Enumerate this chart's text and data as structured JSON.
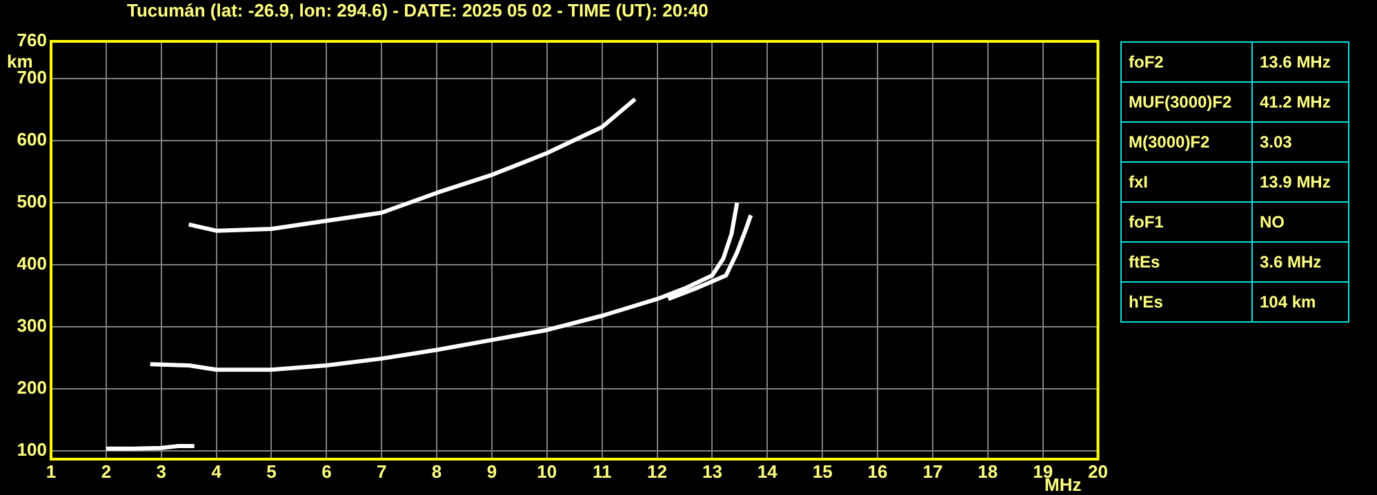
{
  "chart_data": [
    {
      "type": "line",
      "title": "Tucumán (lat: -26.9, lon: 294.6) - DATE: 2025 05 02 - TIME (UT): 20:40",
      "xlabel": "MHz",
      "ylabel": "km",
      "xlim": [
        1,
        20
      ],
      "xticks": [
        1,
        2,
        3,
        4,
        5,
        6,
        7,
        8,
        9,
        10,
        11,
        12,
        13,
        14,
        15,
        16,
        17,
        18,
        19,
        20
      ],
      "ylim": [
        87,
        760
      ],
      "yticks": [
        100,
        200,
        300,
        400,
        500,
        600,
        700,
        760
      ],
      "grid": true,
      "marker": "none",
      "line_style": "solid",
      "series": [
        {
          "color": "#ffffff",
          "x": [
            2.0,
            2.5,
            3.0,
            3.3,
            3.6
          ],
          "values": [
            104,
            104,
            105,
            108,
            108
          ]
        },
        {
          "color": "#ffffff",
          "x": [
            2.8,
            3.5,
            4,
            5,
            6,
            7,
            8,
            9,
            10,
            11,
            12,
            12.5,
            13,
            13.2,
            13.35,
            13.45
          ],
          "values": [
            240,
            238,
            231,
            231,
            238,
            249,
            263,
            279,
            295,
            318,
            345,
            362,
            383,
            410,
            450,
            500
          ]
        },
        {
          "color": "#ffffff",
          "x": [
            12.2,
            12.7,
            13.25,
            13.45,
            13.6,
            13.7
          ],
          "values": [
            345,
            362,
            383,
            420,
            455,
            480
          ]
        },
        {
          "color": "#ffffff",
          "x": [
            3.5,
            4,
            5,
            6,
            7,
            8,
            9,
            10,
            11,
            11.6
          ],
          "values": [
            465,
            455,
            458,
            471,
            484,
            516,
            545,
            580,
            622,
            667
          ]
        }
      ]
    },
    {
      "type": "other",
      "annotations": [
        "foF2",
        "13.6 MHz",
        "MUF(3000)F2",
        "41.2 MHz",
        "M(3000)F2",
        "3.03",
        "fxI",
        "13.9 MHz",
        "foF1",
        "NO",
        "ftEs",
        "3.6 MHz",
        "h'Es",
        "104 km"
      ]
    }
  ]
}
